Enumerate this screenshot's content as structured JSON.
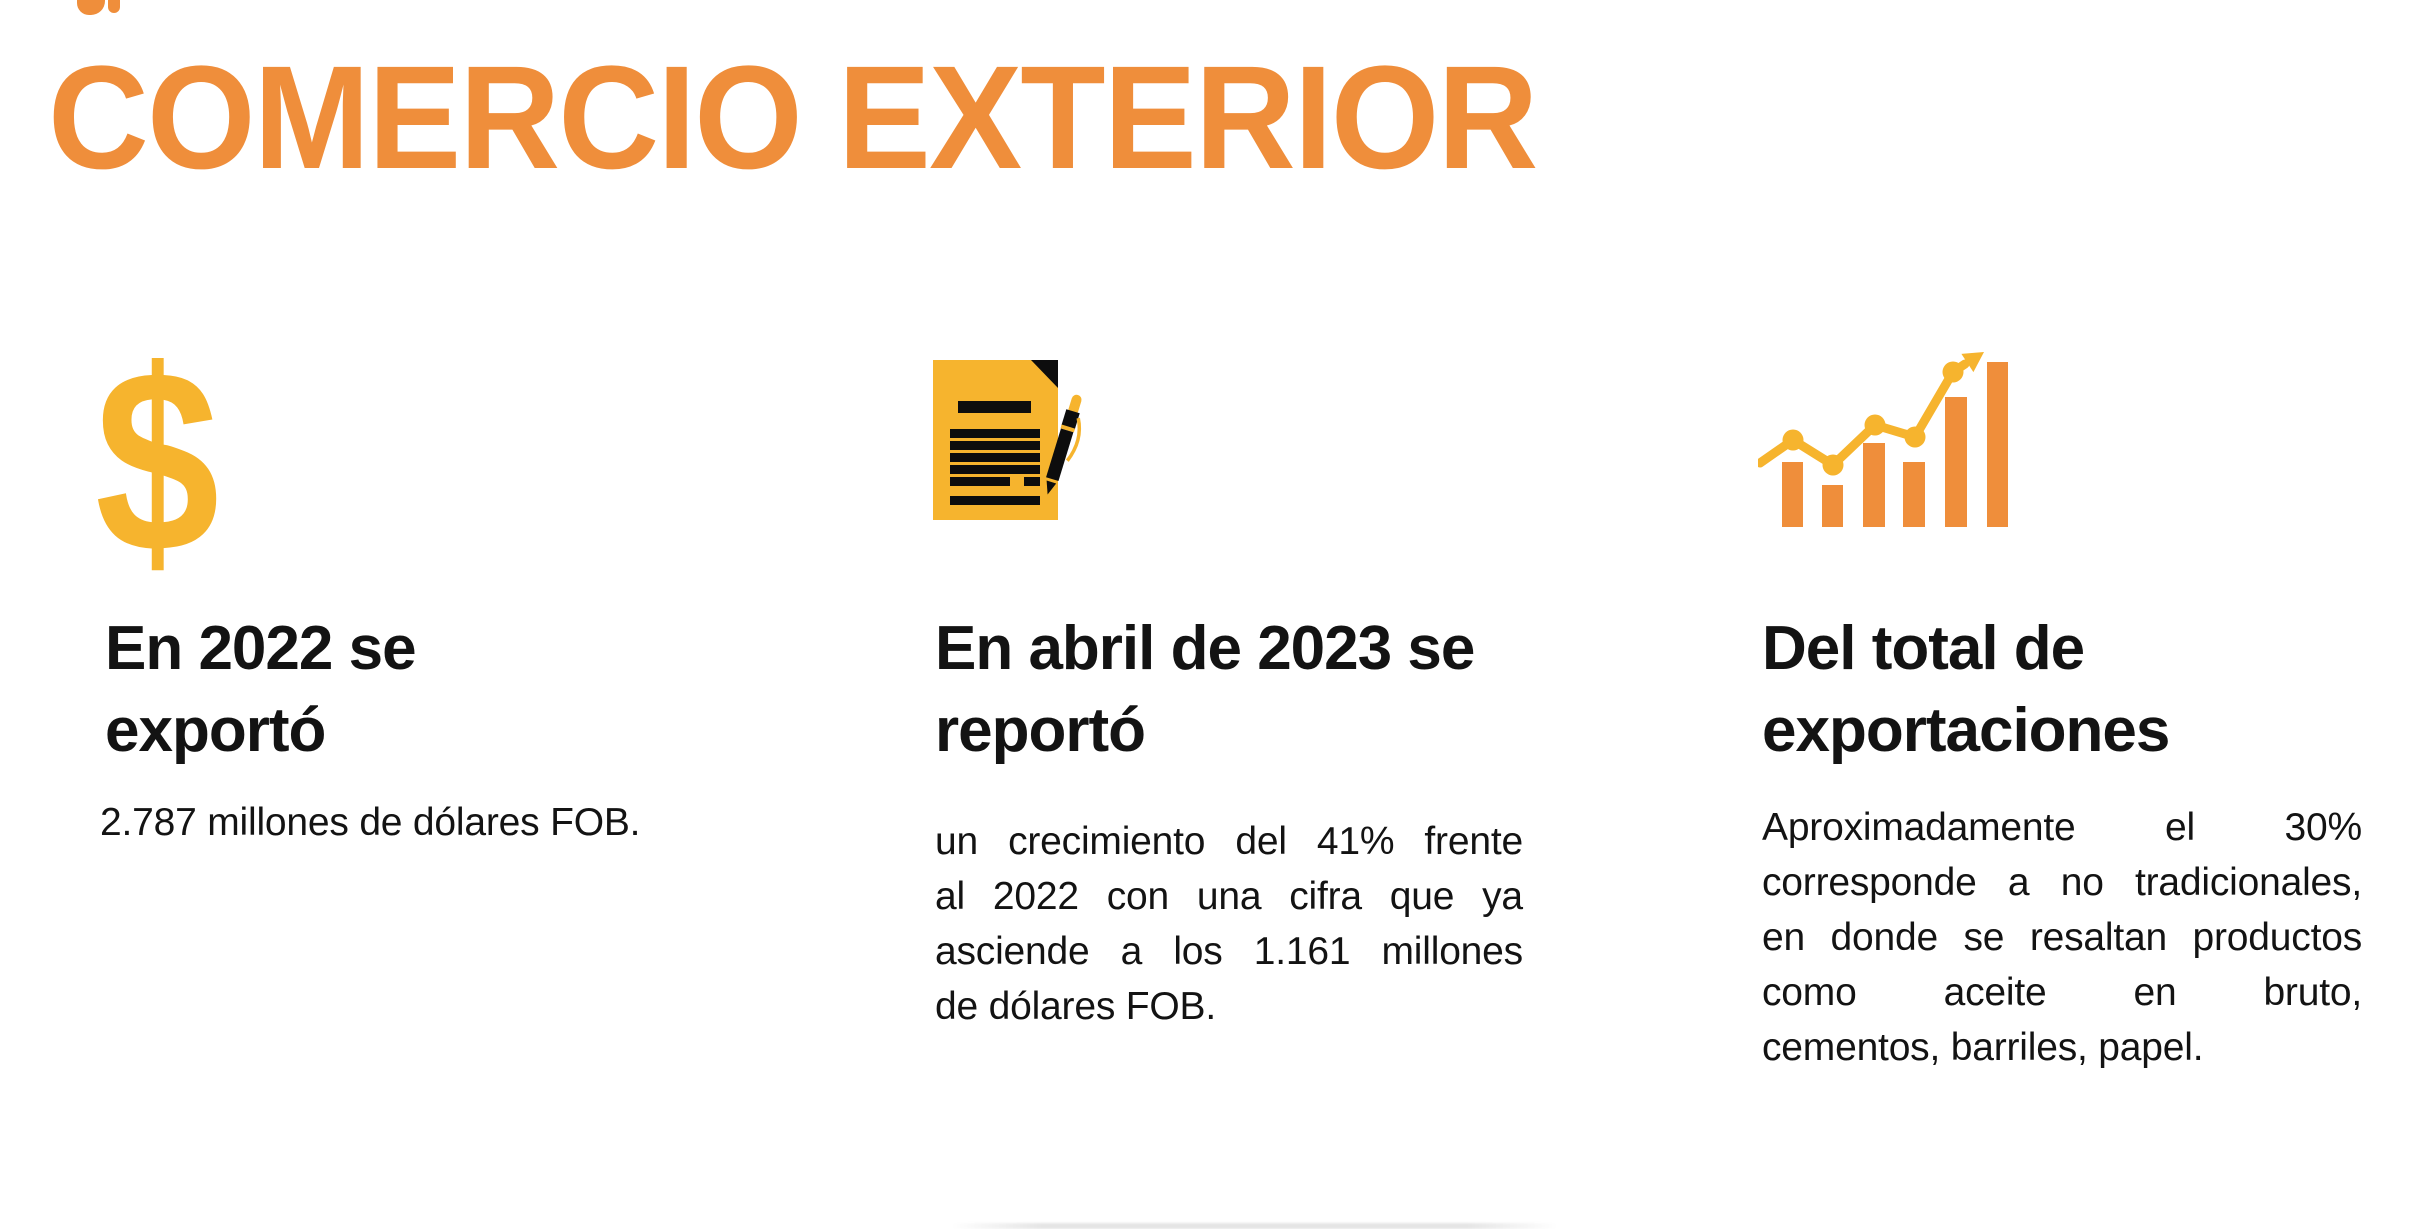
{
  "page": {
    "title": "COMERCIO EXTERIOR"
  },
  "colors": {
    "orange": "#EF8E3B",
    "gold": "#F6B42E",
    "ink": "#131313",
    "icon_black": "#0D0D0D"
  },
  "columns": [
    {
      "id": "exports-2022",
      "icon": "dollar-sign-icon",
      "icon_glyph": "$",
      "heading": "En 2022 se\nexportó",
      "body_lines": [
        "2.787 millones de dólares FOB."
      ],
      "justified": false
    },
    {
      "id": "april-2023-report",
      "icon": "document-pen-icon",
      "heading": "En abril de 2023 se\nreportó",
      "body_lines": [
        "un crecimiento del 41% frente",
        "al 2022 con una cifra que ya",
        "asciende a los 1.161 millones",
        "de dólares FOB."
      ],
      "justified": true
    },
    {
      "id": "non-traditional-share",
      "icon": "growth-chart-icon",
      "heading": "Del total de\nexportaciones",
      "body_lines": [
        "Aproximadamente el 30%",
        "corresponde a no tradicionales,",
        "en donde se resaltan productos",
        "como aceite en bruto,",
        "cementos, barriles, papel."
      ],
      "justified": true
    }
  ]
}
